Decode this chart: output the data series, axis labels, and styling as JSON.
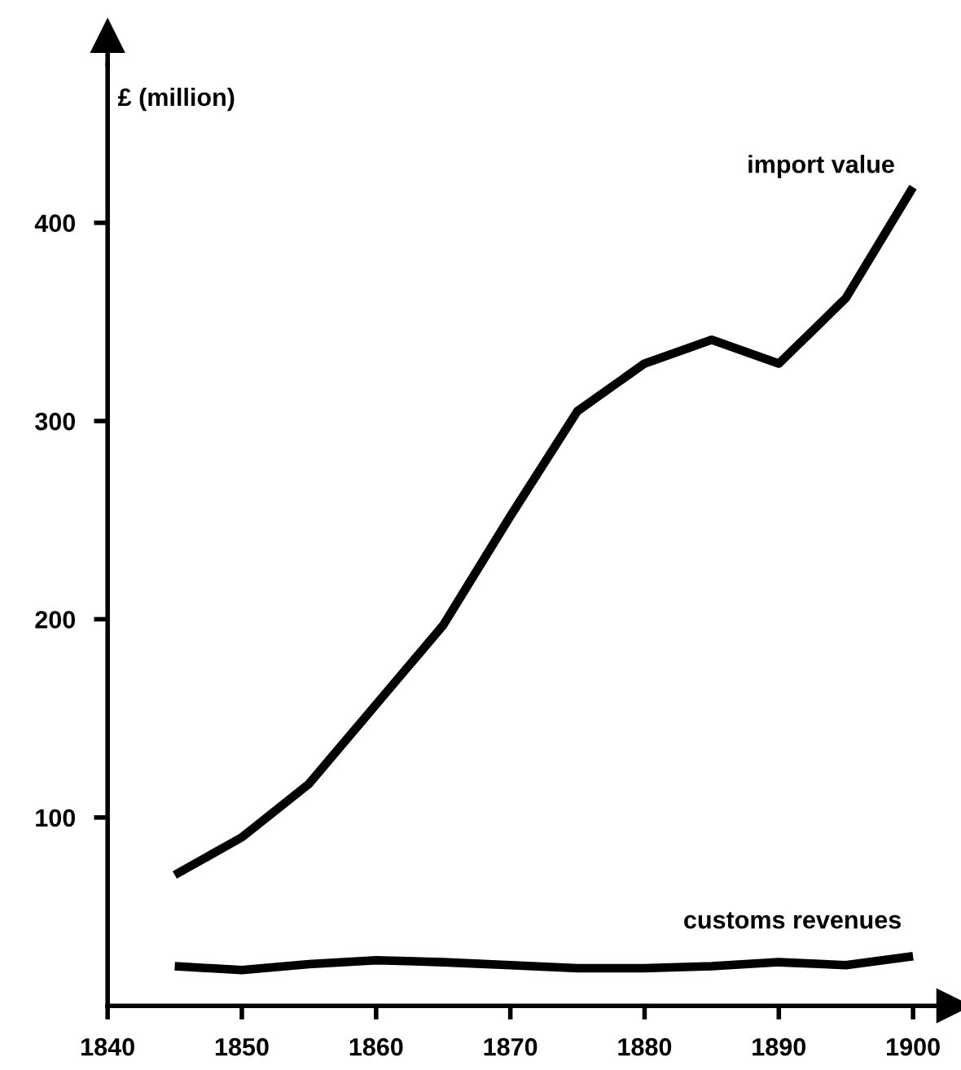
{
  "chart_data": {
    "type": "line",
    "ylabel": "£ (million)",
    "x": [
      1845,
      1850,
      1855,
      1860,
      1865,
      1870,
      1875,
      1880,
      1885,
      1890,
      1895,
      1900
    ],
    "series": [
      {
        "name": "import value",
        "color": "#000000",
        "values": [
          71,
          90,
          117,
          157,
          197,
          252,
          305,
          329,
          341,
          329,
          362,
          418
        ]
      },
      {
        "name": "customs revenues",
        "color": "#000000",
        "values": [
          25,
          23,
          26,
          28,
          27,
          25.5,
          24,
          24,
          25,
          27,
          25.5,
          30
        ]
      }
    ],
    "xlim": [
      1840,
      1903
    ],
    "ylim": [
      5,
      480
    ],
    "xticks": [
      1840,
      1850,
      1860,
      1870,
      1880,
      1890,
      1900
    ],
    "yticks": [
      100,
      200,
      300,
      400
    ],
    "grid": false,
    "legend": false,
    "marker": "none",
    "line_style": "solid"
  }
}
